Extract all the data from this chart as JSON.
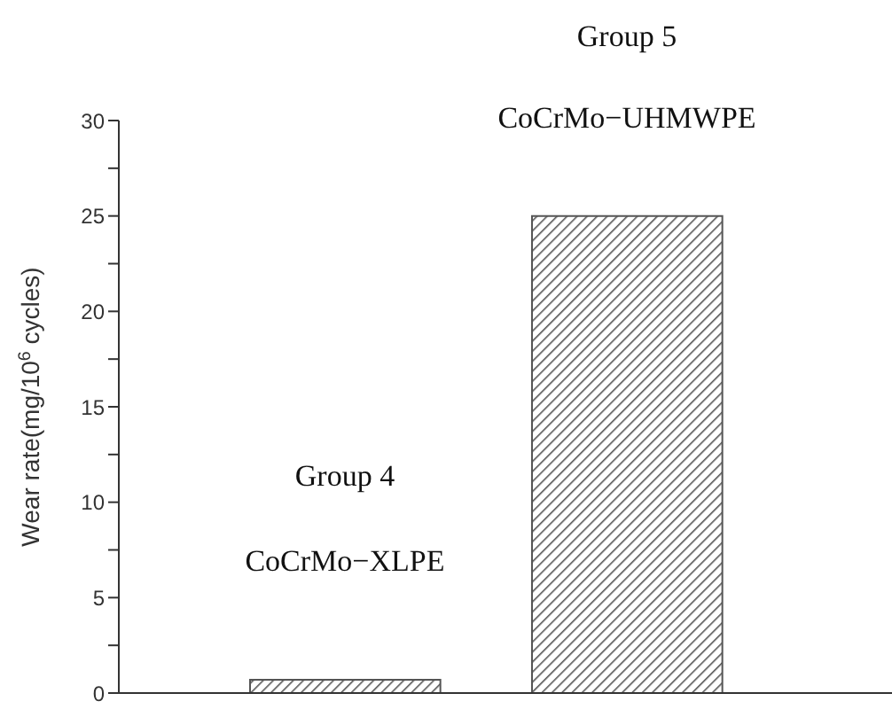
{
  "chart_data": {
    "type": "bar",
    "ylabel": "Wear rate(mg/10$^{6}$ cycles)",
    "categories": [
      null,
      null
    ],
    "values": [
      0.7,
      25
    ],
    "color": "#555555",
    "ylim": [
      0,
      30
    ],
    "yticks": [
      0,
      {
        "value": 2.5,
        "label": null
      },
      5,
      {
        "value": 7.5,
        "label": null
      },
      10,
      {
        "value": 12.5,
        "label": null
      },
      15,
      {
        "value": 17.5,
        "label": null
      },
      20,
      {
        "value": 22.5,
        "label": null
      },
      25,
      {
        "value": 27.5,
        "label": null
      },
      30
    ],
    "annotations": [
      "Group 4",
      "CoCrMo−XLPE",
      "Group 5",
      "CoCrMo−UHMWPE"
    ],
    "grid": false
  }
}
